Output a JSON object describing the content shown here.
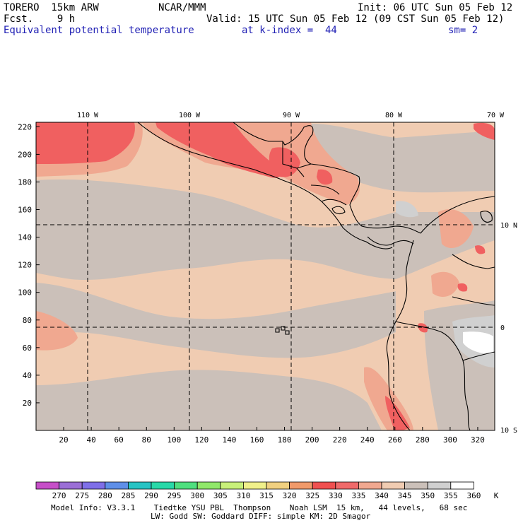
{
  "header": {
    "model": "TORERO  15km ARW",
    "center": "NCAR/MMM",
    "init": "Init: 06 UTC Sun 05 Feb 12",
    "fcst": "Fcst.    9 h",
    "valid": "Valid: 15 UTC Sun 05 Feb 12 (09 CST Sun 05 Feb 12)",
    "field": "Equivalent potential temperature",
    "level": "at k-index =  44",
    "smoothing": "sm= 2"
  },
  "map": {
    "x_ticks": [
      "20",
      "40",
      "60",
      "80",
      "100",
      "120",
      "140",
      "160",
      "180",
      "200",
      "220",
      "240",
      "260",
      "280",
      "300",
      "320"
    ],
    "y_ticks": [
      "20",
      "40",
      "60",
      "80",
      "100",
      "120",
      "140",
      "160",
      "180",
      "200",
      "220"
    ],
    "lon_labels": [
      "110 W",
      "100 W",
      "90 W",
      "80 W",
      "70 W"
    ],
    "lat_labels": [
      "10 N",
      "0",
      "10 S"
    ]
  },
  "colorbar": {
    "values": [
      "270",
      "275",
      "280",
      "285",
      "290",
      "295",
      "300",
      "305",
      "310",
      "315",
      "320",
      "325",
      "330",
      "335",
      "340",
      "345",
      "350",
      "355",
      "360"
    ],
    "unit": "K",
    "colors": [
      "#c64fc8",
      "#9b6fd6",
      "#7f6fe8",
      "#5f8fe8",
      "#29c4c4",
      "#29d9a8",
      "#4fe07f",
      "#90e86a",
      "#c8f07a",
      "#f0f08a",
      "#f0d080",
      "#f09a6a",
      "#f05050",
      "#f06a6a",
      "#f0a890",
      "#f0ccb2",
      "#cbc0b9",
      "#d0d0d0",
      "#ffffff"
    ]
  },
  "footer": {
    "line1": "Model Info: V3.3.1    Tiedtke YSU PBL  Thompson    Noah LSM  15 km,   44 levels,   68 sec",
    "line2": "LW: Godd SW: Goddard DIFF: simple KM: 2D Smagor"
  }
}
